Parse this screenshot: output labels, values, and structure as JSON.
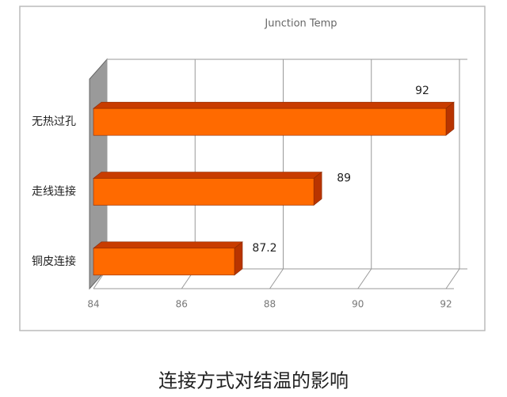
{
  "chart_data": {
    "type": "bar3d",
    "title": "Junction Temp",
    "categories": [
      "无热过孔",
      "走线连接",
      "铜皮连接"
    ],
    "values": [
      92,
      89,
      87.2
    ],
    "color": "#ff6a00",
    "xlim": [
      84,
      92
    ],
    "xticks": [
      84,
      86,
      88,
      90,
      92
    ],
    "grid": true,
    "caption": "连接方式对结温的影响"
  }
}
